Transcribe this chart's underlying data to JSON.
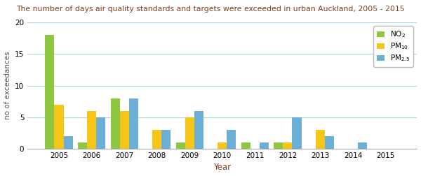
{
  "title": "The number of days air quality standards and targets were exceeded in urban Auckland, 2005 - 2015",
  "xlabel": "Year",
  "ylabel": "no of exceedances",
  "years": [
    2005,
    2006,
    2007,
    2008,
    2009,
    2010,
    2011,
    2012,
    2013,
    2014,
    2015
  ],
  "NO2": [
    18,
    1,
    8,
    0,
    1,
    0,
    1,
    1,
    0,
    0,
    0
  ],
  "PM10": [
    7,
    6,
    6,
    3,
    5,
    1,
    0,
    1,
    3,
    0,
    0
  ],
  "PM25": [
    2,
    5,
    8,
    3,
    6,
    3,
    1,
    5,
    2,
    1,
    0
  ],
  "NO2_color": "#8dc63f",
  "PM10_color": "#f5c518",
  "PM25_color": "#6baed6",
  "title_color": "#7b3f1e",
  "xlabel_color": "#7b3f1e",
  "ylabel_color": "#555555",
  "ylim": [
    0,
    20
  ],
  "yticks": [
    0,
    5,
    10,
    15,
    20
  ],
  "grid_color": "#add8e6",
  "bar_width": 0.28,
  "bg_color": "#ffffff",
  "spine_color": "#aaaaaa"
}
